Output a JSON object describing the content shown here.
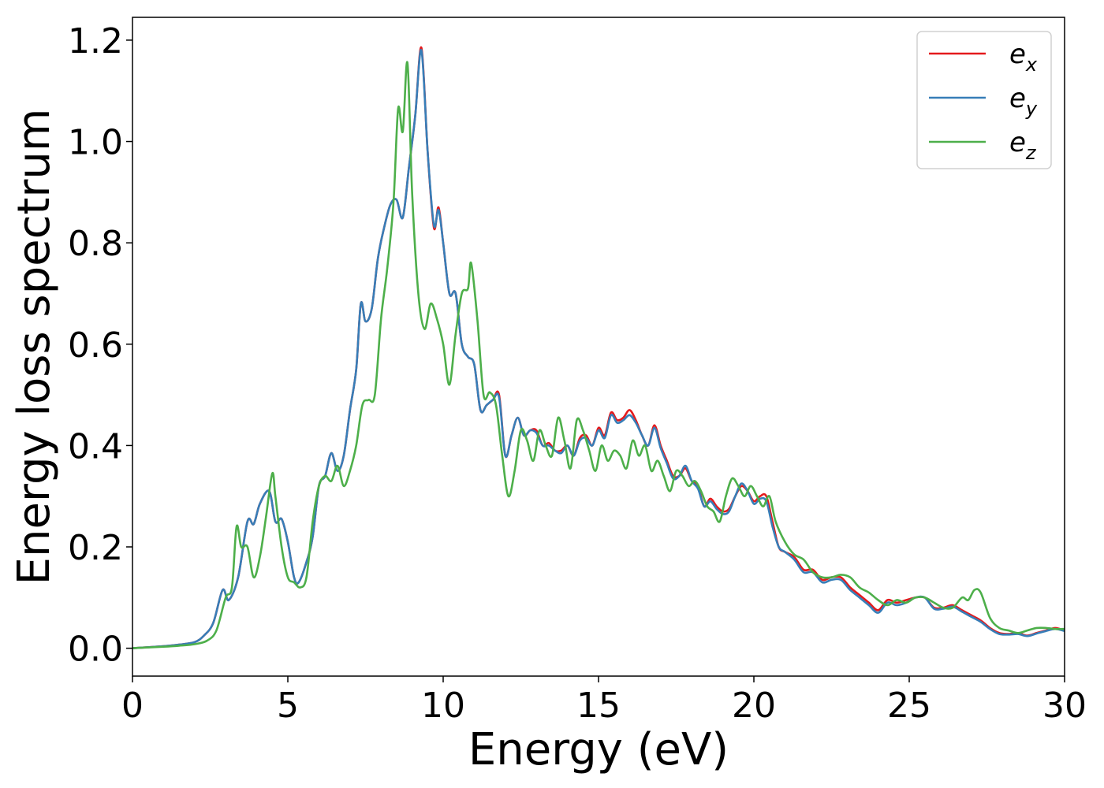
{
  "chart_data": {
    "type": "line",
    "title": "",
    "xlabel": "Energy (eV)",
    "ylabel": "Energy loss spectrum",
    "xlim": [
      0,
      30
    ],
    "ylim": [
      -0.055,
      1.245
    ],
    "xticks": [
      0,
      5,
      10,
      15,
      20,
      25,
      30
    ],
    "xtick_labels": [
      "0",
      "5",
      "10",
      "15",
      "20",
      "25",
      "30"
    ],
    "yticks": [
      0.0,
      0.2,
      0.4,
      0.6,
      0.8,
      1.0,
      1.2
    ],
    "ytick_labels": [
      "0.0",
      "0.2",
      "0.4",
      "0.6",
      "0.8",
      "1.0",
      "1.2"
    ],
    "grid": false,
    "legend_position": "top-right",
    "series": [
      {
        "name": "e_x",
        "legend_main": "e",
        "legend_sub": "x",
        "color": "#e41a1c",
        "x": [
          0,
          1,
          1.5,
          2,
          2.3,
          2.6,
          2.9,
          3.1,
          3.4,
          3.7,
          3.9,
          4.1,
          4.4,
          4.6,
          4.8,
          5.0,
          5.2,
          5.35,
          5.6,
          5.8,
          6.0,
          6.2,
          6.4,
          6.6,
          6.8,
          7.0,
          7.2,
          7.35,
          7.5,
          7.7,
          7.9,
          8.1,
          8.3,
          8.5,
          8.7,
          8.9,
          9.1,
          9.3,
          9.5,
          9.7,
          9.85,
          10.0,
          10.2,
          10.4,
          10.6,
          10.8,
          11.0,
          11.2,
          11.4,
          11.6,
          11.8,
          12.0,
          12.2,
          12.4,
          12.6,
          12.8,
          13.0,
          13.2,
          13.4,
          13.6,
          13.8,
          14.0,
          14.2,
          14.4,
          14.6,
          14.8,
          15.0,
          15.2,
          15.4,
          15.6,
          15.8,
          16.0,
          16.2,
          16.4,
          16.6,
          16.8,
          17.0,
          17.2,
          17.4,
          17.6,
          17.8,
          18.0,
          18.2,
          18.4,
          18.6,
          18.8,
          19.0,
          19.2,
          19.4,
          19.6,
          19.8,
          20.0,
          20.2,
          20.4,
          20.6,
          20.8,
          21.0,
          21.3,
          21.6,
          21.9,
          22.2,
          22.5,
          22.8,
          23.1,
          23.4,
          23.7,
          24.0,
          24.3,
          24.6,
          24.9,
          25.2,
          25.5,
          25.8,
          26.1,
          26.4,
          26.7,
          27.0,
          27.3,
          27.6,
          27.9,
          28.2,
          28.5,
          28.8,
          29.1,
          29.4,
          29.7,
          30.0
        ],
        "y": [
          0.0,
          0.004,
          0.007,
          0.012,
          0.025,
          0.05,
          0.115,
          0.095,
          0.14,
          0.25,
          0.245,
          0.285,
          0.31,
          0.25,
          0.255,
          0.21,
          0.14,
          0.13,
          0.17,
          0.22,
          0.32,
          0.34,
          0.385,
          0.35,
          0.38,
          0.47,
          0.55,
          0.68,
          0.645,
          0.67,
          0.77,
          0.83,
          0.875,
          0.885,
          0.85,
          0.95,
          1.05,
          1.185,
          0.98,
          0.83,
          0.87,
          0.8,
          0.7,
          0.7,
          0.6,
          0.575,
          0.56,
          0.47,
          0.48,
          0.49,
          0.5,
          0.38,
          0.42,
          0.455,
          0.42,
          0.43,
          0.43,
          0.4,
          0.405,
          0.39,
          0.39,
          0.4,
          0.38,
          0.415,
          0.42,
          0.4,
          0.435,
          0.42,
          0.465,
          0.45,
          0.455,
          0.47,
          0.45,
          0.42,
          0.4,
          0.44,
          0.4,
          0.37,
          0.34,
          0.34,
          0.355,
          0.33,
          0.32,
          0.28,
          0.295,
          0.28,
          0.27,
          0.275,
          0.3,
          0.32,
          0.31,
          0.29,
          0.3,
          0.3,
          0.25,
          0.2,
          0.19,
          0.18,
          0.155,
          0.155,
          0.135,
          0.14,
          0.14,
          0.12,
          0.105,
          0.09,
          0.075,
          0.095,
          0.09,
          0.095,
          0.1,
          0.1,
          0.08,
          0.08,
          0.085,
          0.075,
          0.065,
          0.055,
          0.04,
          0.03,
          0.028,
          0.03,
          0.025,
          0.03,
          0.035,
          0.04,
          0.035
        ]
      },
      {
        "name": "e_y",
        "legend_main": "e",
        "legend_sub": "y",
        "color": "#377eb8",
        "x": [
          0,
          1,
          1.5,
          2,
          2.3,
          2.6,
          2.9,
          3.1,
          3.4,
          3.7,
          3.9,
          4.1,
          4.4,
          4.6,
          4.8,
          5.0,
          5.2,
          5.35,
          5.6,
          5.8,
          6.0,
          6.2,
          6.4,
          6.6,
          6.8,
          7.0,
          7.2,
          7.35,
          7.5,
          7.7,
          7.9,
          8.1,
          8.3,
          8.5,
          8.7,
          8.9,
          9.1,
          9.3,
          9.5,
          9.7,
          9.85,
          10.0,
          10.2,
          10.4,
          10.6,
          10.8,
          11.0,
          11.2,
          11.4,
          11.6,
          11.8,
          12.0,
          12.2,
          12.4,
          12.6,
          12.8,
          13.0,
          13.2,
          13.4,
          13.6,
          13.8,
          14.0,
          14.2,
          14.4,
          14.6,
          14.8,
          15.0,
          15.2,
          15.4,
          15.6,
          15.8,
          16.0,
          16.2,
          16.4,
          16.6,
          16.8,
          17.0,
          17.2,
          17.4,
          17.6,
          17.8,
          18.0,
          18.2,
          18.4,
          18.6,
          18.8,
          19.0,
          19.2,
          19.4,
          19.6,
          19.8,
          20.0,
          20.2,
          20.4,
          20.6,
          20.8,
          21.0,
          21.3,
          21.6,
          21.9,
          22.2,
          22.5,
          22.8,
          23.1,
          23.4,
          23.7,
          24.0,
          24.3,
          24.6,
          24.9,
          25.2,
          25.5,
          25.8,
          26.1,
          26.4,
          26.7,
          27.0,
          27.3,
          27.6,
          27.9,
          28.2,
          28.5,
          28.8,
          29.1,
          29.4,
          29.7,
          30.0
        ],
        "y": [
          0.0,
          0.004,
          0.007,
          0.012,
          0.025,
          0.05,
          0.115,
          0.095,
          0.14,
          0.25,
          0.245,
          0.285,
          0.31,
          0.25,
          0.255,
          0.21,
          0.14,
          0.13,
          0.17,
          0.22,
          0.32,
          0.34,
          0.385,
          0.35,
          0.38,
          0.47,
          0.55,
          0.68,
          0.645,
          0.67,
          0.77,
          0.83,
          0.875,
          0.885,
          0.85,
          0.95,
          1.05,
          1.18,
          0.98,
          0.835,
          0.865,
          0.8,
          0.7,
          0.7,
          0.6,
          0.575,
          0.56,
          0.47,
          0.48,
          0.49,
          0.495,
          0.38,
          0.42,
          0.455,
          0.42,
          0.43,
          0.425,
          0.4,
          0.4,
          0.39,
          0.385,
          0.4,
          0.38,
          0.41,
          0.415,
          0.4,
          0.43,
          0.415,
          0.46,
          0.445,
          0.45,
          0.46,
          0.445,
          0.42,
          0.4,
          0.435,
          0.395,
          0.365,
          0.335,
          0.34,
          0.36,
          0.33,
          0.315,
          0.28,
          0.29,
          0.275,
          0.265,
          0.27,
          0.3,
          0.325,
          0.31,
          0.285,
          0.295,
          0.29,
          0.24,
          0.2,
          0.19,
          0.175,
          0.15,
          0.15,
          0.13,
          0.135,
          0.135,
          0.115,
          0.1,
          0.085,
          0.07,
          0.09,
          0.085,
          0.09,
          0.1,
          0.1,
          0.078,
          0.078,
          0.082,
          0.072,
          0.062,
          0.052,
          0.038,
          0.028,
          0.027,
          0.028,
          0.024,
          0.029,
          0.034,
          0.038,
          0.034
        ]
      },
      {
        "name": "e_z",
        "legend_main": "e",
        "legend_sub": "z",
        "color": "#4daf4a",
        "x": [
          0,
          1,
          1.5,
          2,
          2.4,
          2.7,
          3.0,
          3.2,
          3.35,
          3.5,
          3.7,
          3.9,
          4.1,
          4.3,
          4.5,
          4.6,
          4.8,
          5.0,
          5.2,
          5.4,
          5.6,
          5.8,
          6.0,
          6.2,
          6.4,
          6.6,
          6.8,
          7.0,
          7.2,
          7.4,
          7.6,
          7.8,
          8.0,
          8.2,
          8.4,
          8.55,
          8.7,
          8.85,
          9.0,
          9.2,
          9.4,
          9.6,
          9.8,
          10.0,
          10.2,
          10.4,
          10.6,
          10.8,
          10.9,
          11.1,
          11.3,
          11.5,
          11.7,
          11.9,
          12.1,
          12.3,
          12.5,
          12.7,
          12.9,
          13.1,
          13.3,
          13.5,
          13.7,
          13.9,
          14.1,
          14.3,
          14.5,
          14.7,
          14.9,
          15.1,
          15.3,
          15.5,
          15.7,
          15.9,
          16.1,
          16.3,
          16.5,
          16.7,
          16.9,
          17.1,
          17.3,
          17.5,
          17.7,
          17.9,
          18.1,
          18.3,
          18.5,
          18.7,
          18.9,
          19.1,
          19.3,
          19.5,
          19.7,
          19.9,
          20.1,
          20.3,
          20.5,
          20.7,
          21.0,
          21.3,
          21.6,
          21.9,
          22.2,
          22.5,
          22.8,
          23.1,
          23.4,
          23.7,
          24.0,
          24.3,
          24.6,
          24.9,
          25.2,
          25.5,
          25.8,
          26.1,
          26.4,
          26.7,
          26.9,
          27.1,
          27.3,
          27.6,
          27.9,
          28.2,
          28.5,
          28.8,
          29.1,
          29.4,
          29.7,
          30.0
        ],
        "y": [
          0.0,
          0.003,
          0.005,
          0.008,
          0.015,
          0.035,
          0.1,
          0.12,
          0.24,
          0.2,
          0.2,
          0.14,
          0.18,
          0.26,
          0.345,
          0.3,
          0.2,
          0.14,
          0.13,
          0.12,
          0.14,
          0.25,
          0.32,
          0.34,
          0.33,
          0.36,
          0.32,
          0.35,
          0.4,
          0.48,
          0.49,
          0.5,
          0.65,
          0.75,
          0.88,
          1.065,
          1.02,
          1.155,
          0.9,
          0.7,
          0.63,
          0.68,
          0.65,
          0.6,
          0.52,
          0.62,
          0.7,
          0.71,
          0.76,
          0.65,
          0.5,
          0.505,
          0.48,
          0.38,
          0.3,
          0.35,
          0.43,
          0.41,
          0.37,
          0.43,
          0.4,
          0.38,
          0.455,
          0.41,
          0.355,
          0.45,
          0.43,
          0.39,
          0.35,
          0.4,
          0.37,
          0.39,
          0.38,
          0.355,
          0.41,
          0.38,
          0.4,
          0.35,
          0.37,
          0.34,
          0.31,
          0.35,
          0.34,
          0.32,
          0.33,
          0.31,
          0.28,
          0.27,
          0.25,
          0.3,
          0.335,
          0.32,
          0.3,
          0.32,
          0.3,
          0.28,
          0.3,
          0.25,
          0.21,
          0.185,
          0.175,
          0.15,
          0.14,
          0.14,
          0.145,
          0.14,
          0.12,
          0.11,
          0.095,
          0.085,
          0.095,
          0.09,
          0.1,
          0.1,
          0.09,
          0.08,
          0.08,
          0.1,
          0.095,
          0.115,
          0.11,
          0.06,
          0.04,
          0.035,
          0.03,
          0.035,
          0.04,
          0.04,
          0.038,
          0.038
        ]
      }
    ]
  }
}
